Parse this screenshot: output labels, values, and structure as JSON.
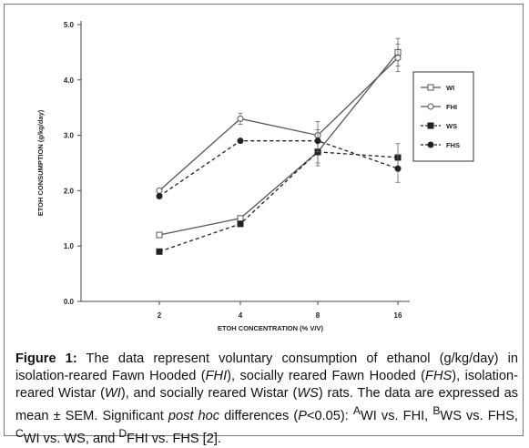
{
  "chart_data": {
    "type": "line",
    "title": "",
    "xlabel": "ETOH CONCENTRATION (% V/V)",
    "ylabel": "ETOH CONSUMPTION (g/kg/day)",
    "categories": [
      "2",
      "4",
      "8",
      "16"
    ],
    "ylim": [
      0,
      5
    ],
    "yticks": [
      "0.0",
      "1.0",
      "2.0",
      "3.0",
      "4.0",
      "5.0"
    ],
    "grid": false,
    "legend_position": "right",
    "series": [
      {
        "name": "WI",
        "values": [
          1.2,
          1.5,
          2.7,
          4.5
        ],
        "errors": [
          0.0,
          0.0,
          0.25,
          0.25
        ],
        "marker": "open-square",
        "line": "solid",
        "color": "#555555"
      },
      {
        "name": "FHI",
        "values": [
          2.0,
          3.3,
          3.0,
          4.4
        ],
        "errors": [
          0.0,
          0.1,
          0.25,
          0.25
        ],
        "marker": "open-circle",
        "line": "solid",
        "color": "#555555"
      },
      {
        "name": "WS",
        "values": [
          0.9,
          1.4,
          2.7,
          2.6
        ],
        "errors": [
          0.0,
          0.0,
          0.2,
          0.25
        ],
        "marker": "filled-square",
        "line": "dashed",
        "color": "#222222"
      },
      {
        "name": "FHS",
        "values": [
          1.9,
          2.9,
          2.9,
          2.4
        ],
        "errors": [
          0.0,
          0.0,
          0.2,
          0.25
        ],
        "marker": "filled-circle",
        "line": "dashed",
        "color": "#222222"
      }
    ]
  },
  "caption": {
    "label": "Figure 1:",
    "text_1": " The data represent voluntary consumption of ethanol (g/kg/day) in isolation-reared Fawn Hooded (",
    "fhi": "FHI",
    "text_2": "), socially reared Fawn Hooded (",
    "fhs": "FHS",
    "text_3": "), isolation-reared Wistar (",
    "wi": "WI",
    "text_4": "), and socially reared Wistar (",
    "ws": "WS",
    "text_5": ") rats. The data are expressed as mean ± SEM. Significant ",
    "posthoc": "post hoc",
    "text_6": " differences (",
    "p": "P",
    "text_7": "<0.05): ",
    "sup_a": "A",
    "text_8": "WI vs. FHI, ",
    "sup_b": "B",
    "text_9": "WS vs. FHS, ",
    "sup_c": "C",
    "text_10": "WI vs. WS, and ",
    "sup_d": "D",
    "text_11": "FHI vs. FHS [2]."
  }
}
